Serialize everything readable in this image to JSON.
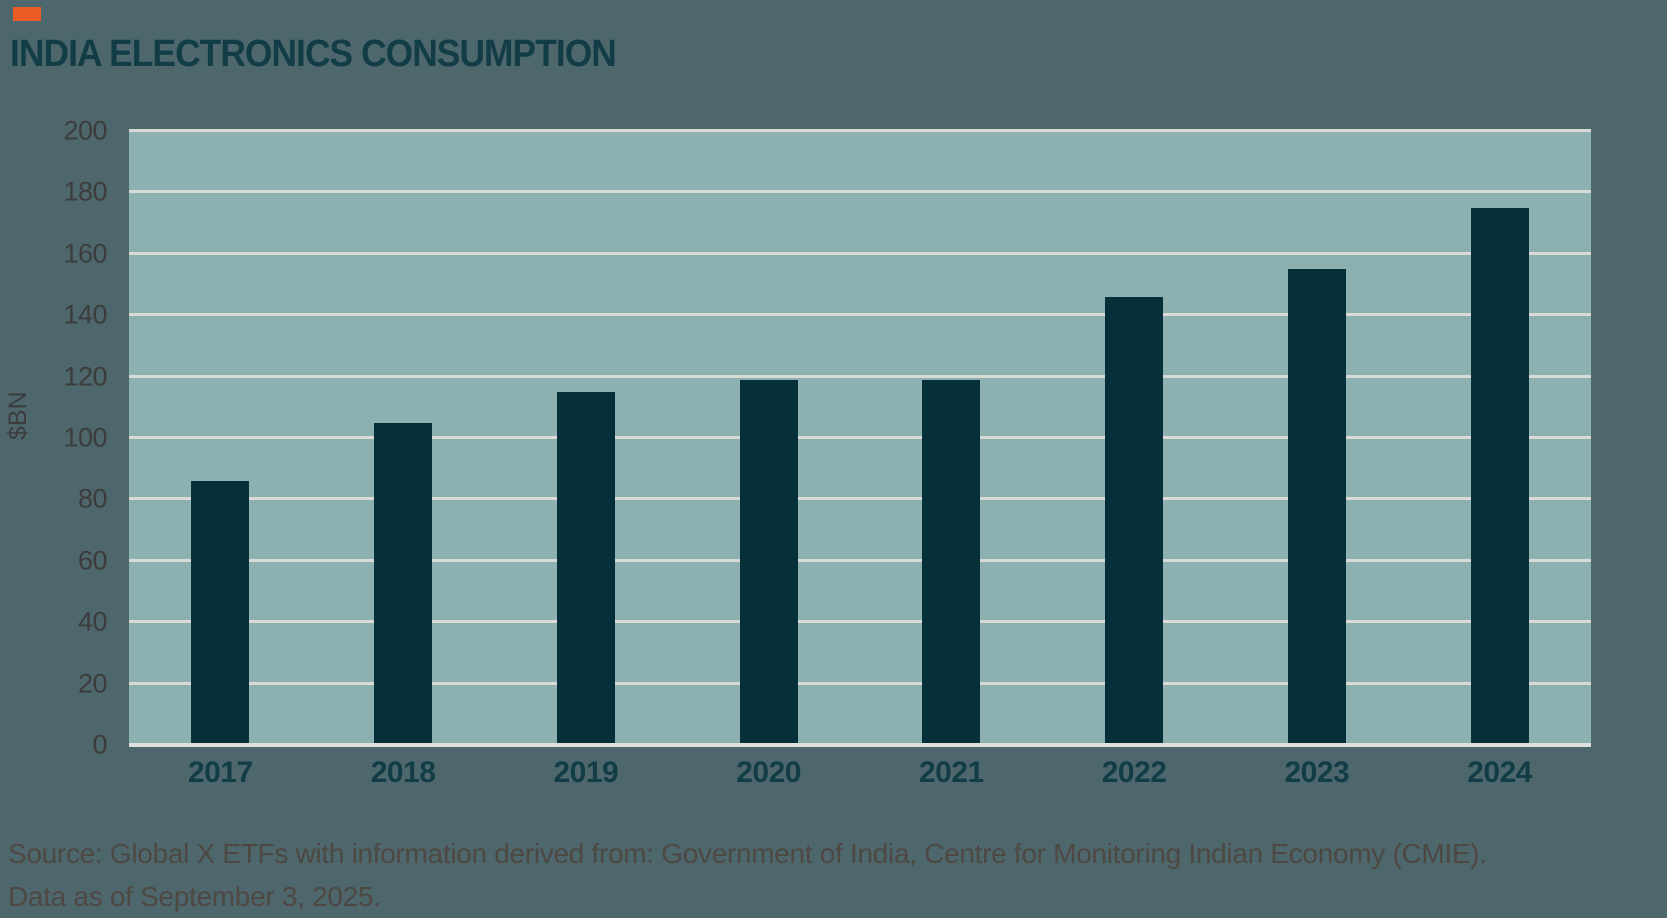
{
  "header": {
    "title": "INDIA ELECTRONICS CONSUMPTION"
  },
  "colors": {
    "accent_orange": "#ea5b25",
    "background": "#4d676d",
    "plot_background": "#8db1b0",
    "bar_color": "#053039",
    "gridline": "#d9dad6",
    "title_text": "#123d47",
    "tick_text": "#3d3c3c",
    "footer_text": "#4e4843"
  },
  "chart_data": {
    "type": "bar",
    "title": "INDIA ELECTRONICS CONSUMPTION",
    "categories": [
      "2017",
      "2018",
      "2019",
      "2020",
      "2021",
      "2022",
      "2023",
      "2024"
    ],
    "values": [
      86,
      105,
      115,
      119,
      119,
      146,
      155,
      175
    ],
    "xlabel": "",
    "ylabel": "$BN",
    "ylim": [
      0,
      200
    ],
    "ytick_step": 20,
    "yticks": [
      0,
      20,
      40,
      60,
      80,
      100,
      120,
      140,
      160,
      180,
      200
    ],
    "grid": true,
    "legend_position": "none"
  },
  "footer": {
    "source_line1": "Source: Global X ETFs with information derived from: Government of India, Centre for Monitoring Indian Economy (CMIE).",
    "source_line2": "Data as of September 3, 2025."
  }
}
